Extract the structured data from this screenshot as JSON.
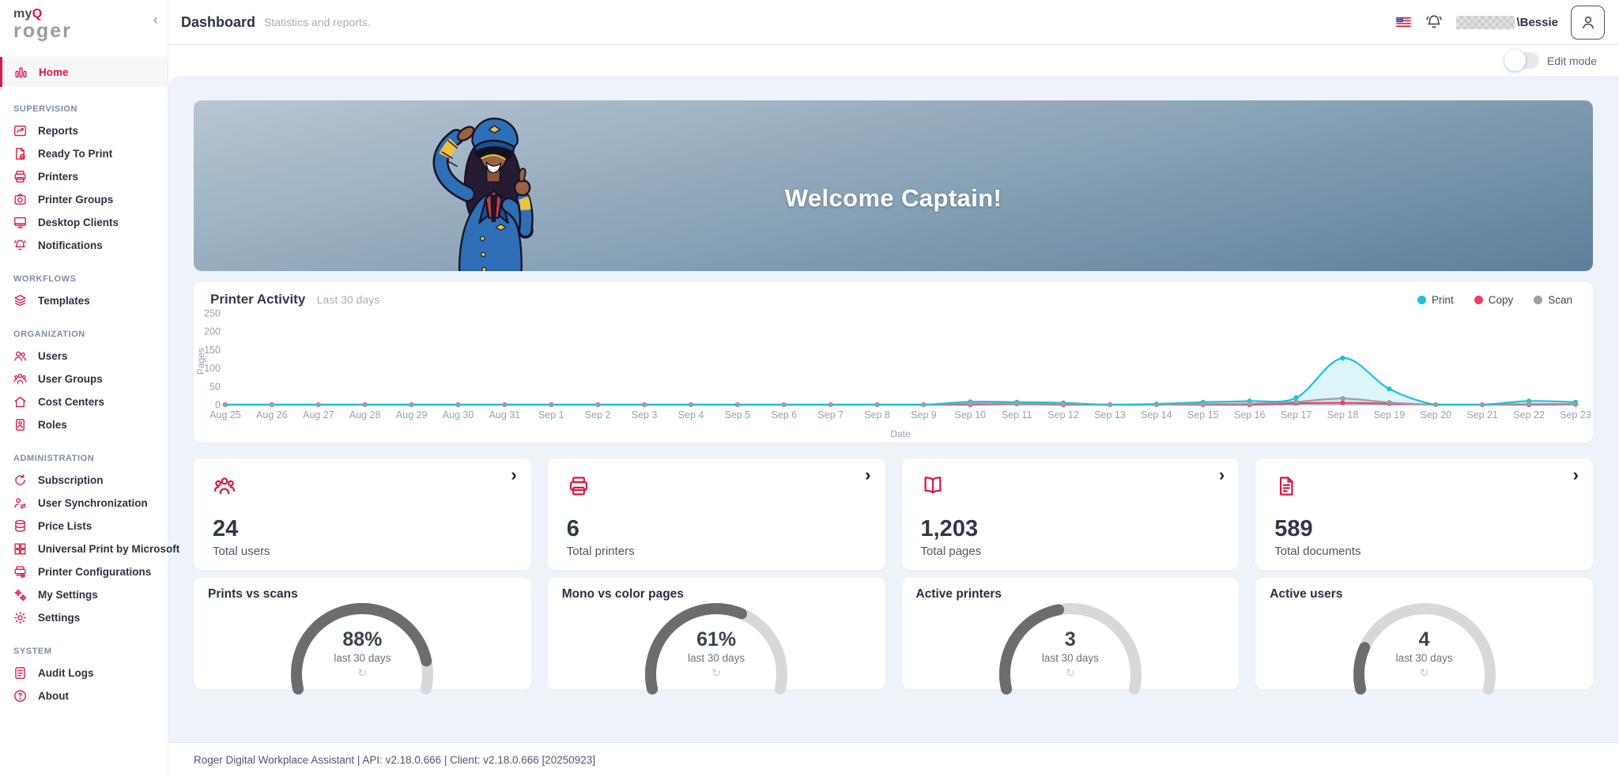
{
  "logo": {
    "my": "my",
    "q": "Q",
    "roger": "roger"
  },
  "icons": {
    "collapse": "‹",
    "chevron_right": "›",
    "refresh": "↻"
  },
  "header": {
    "title": "Dashboard",
    "subtitle": "Statistics and reports.",
    "user": "\\Bessie",
    "edit_mode_label": "Edit mode",
    "edit_mode_on": false,
    "language": "us-flag"
  },
  "sidebar": {
    "home": {
      "label": "Home",
      "icon": "home",
      "active": true
    },
    "sections": [
      {
        "label": "SUPERVISION",
        "items": [
          {
            "label": "Reports",
            "icon": "reports"
          },
          {
            "label": "Ready To Print",
            "icon": "ready"
          },
          {
            "label": "Printers",
            "icon": "printers"
          },
          {
            "label": "Printer Groups",
            "icon": "printerGroups"
          },
          {
            "label": "Desktop Clients",
            "icon": "desktop"
          },
          {
            "label": "Notifications",
            "icon": "bell"
          }
        ]
      },
      {
        "label": "WORKFLOWS",
        "items": [
          {
            "label": "Templates",
            "icon": "templates"
          }
        ]
      },
      {
        "label": "ORGANIZATION",
        "items": [
          {
            "label": "Users",
            "icon": "users"
          },
          {
            "label": "User Groups",
            "icon": "userGroups"
          },
          {
            "label": "Cost Centers",
            "icon": "costCenters"
          },
          {
            "label": "Roles",
            "icon": "roles"
          }
        ]
      },
      {
        "label": "ADMINISTRATION",
        "items": [
          {
            "label": "Subscription",
            "icon": "subscription"
          },
          {
            "label": "User Synchronization",
            "icon": "userSync"
          },
          {
            "label": "Price Lists",
            "icon": "priceLists"
          },
          {
            "label": "Universal Print by Microsoft",
            "icon": "universalPrint"
          },
          {
            "label": "Printer Configurations",
            "icon": "printerConfig"
          },
          {
            "label": "My Settings",
            "icon": "mySettings"
          },
          {
            "label": "Settings",
            "icon": "settings"
          }
        ]
      },
      {
        "label": "SYSTEM",
        "items": [
          {
            "label": "Audit Logs",
            "icon": "auditLogs"
          },
          {
            "label": "About",
            "icon": "about"
          }
        ]
      }
    ]
  },
  "banner": {
    "welcome": "Welcome Captain!"
  },
  "chart_data": {
    "type": "line",
    "title": "Printer Activity",
    "subtitle": "Last 30 days",
    "xlabel": "Date",
    "ylabel": "Pages",
    "ylim": [
      0,
      250
    ],
    "yticks": [
      0,
      50,
      100,
      150,
      200,
      250
    ],
    "grid": false,
    "legend_position": "top-right",
    "x": [
      "Aug 25",
      "Aug 26",
      "Aug 27",
      "Aug 28",
      "Aug 29",
      "Aug 30",
      "Aug 31",
      "Sep 1",
      "Sep 2",
      "Sep 3",
      "Sep 4",
      "Sep 5",
      "Sep 6",
      "Sep 7",
      "Sep 8",
      "Sep 9",
      "Sep 10",
      "Sep 11",
      "Sep 12",
      "Sep 13",
      "Sep 14",
      "Sep 15",
      "Sep 16",
      "Sep 17",
      "Sep 18",
      "Sep 19",
      "Sep 20",
      "Sep 21",
      "Sep 22",
      "Sep 23"
    ],
    "series": [
      {
        "name": "Print",
        "color": "#1fc0da",
        "fill": "rgba(31,192,218,0.16)",
        "values": [
          0,
          0,
          0,
          0,
          0,
          0,
          0,
          0,
          0,
          0,
          0,
          0,
          0,
          0,
          0,
          0,
          8,
          7,
          5,
          0,
          2,
          7,
          10,
          19,
          127,
          43,
          0,
          0,
          10,
          7
        ]
      },
      {
        "name": "Copy",
        "color": "#ef3e66",
        "fill": "none",
        "values": [
          0,
          0,
          0,
          0,
          0,
          0,
          0,
          0,
          0,
          0,
          0,
          0,
          0,
          0,
          0,
          0,
          0,
          2,
          0,
          0,
          0,
          0,
          0,
          4,
          5,
          3,
          0,
          0,
          0,
          1
        ]
      },
      {
        "name": "Scan",
        "color": "#9aa0a6",
        "fill": "rgba(154,160,166,0.18)",
        "values": [
          0,
          0,
          0,
          0,
          0,
          0,
          0,
          0,
          0,
          0,
          0,
          0,
          0,
          0,
          0,
          0,
          3,
          3,
          2,
          0,
          0,
          2,
          3,
          8,
          17,
          6,
          0,
          0,
          2,
          2
        ]
      }
    ]
  },
  "stat_cards": [
    {
      "icon": "group",
      "value": "24",
      "label": "Total users"
    },
    {
      "icon": "printer",
      "value": "6",
      "label": "Total printers"
    },
    {
      "icon": "book",
      "value": "1,203",
      "label": "Total pages"
    },
    {
      "icon": "document",
      "value": "589",
      "label": "Total documents"
    }
  ],
  "gauge_cards": [
    {
      "title": "Prints vs scans",
      "value": "88%",
      "caption": "last 30 days",
      "fraction": 0.88
    },
    {
      "title": "Mono vs color pages",
      "value": "61%",
      "caption": "last 30 days",
      "fraction": 0.61
    },
    {
      "title": "Active printers",
      "value": "3",
      "caption": "last 30 days",
      "fraction": 0.45
    },
    {
      "title": "Active users",
      "value": "4",
      "caption": "last 30 days",
      "fraction": 0.18
    }
  ],
  "footer": {
    "text": "Roger Digital Workplace Assistant | API: v2.18.0.666 | Client: v2.18.0.666 [20250923]"
  },
  "colors": {
    "accent_red": "#dc1740",
    "print": "#1fc0da",
    "copy": "#ef3e66",
    "scan": "#9aa0a6",
    "banner_top": "#b7c6d2",
    "banner_bottom": "#5d7f9b",
    "gauge_fill": "#6c6c6c",
    "gauge_track": "#d8d8d8",
    "axis_line": "#b9adbd"
  }
}
